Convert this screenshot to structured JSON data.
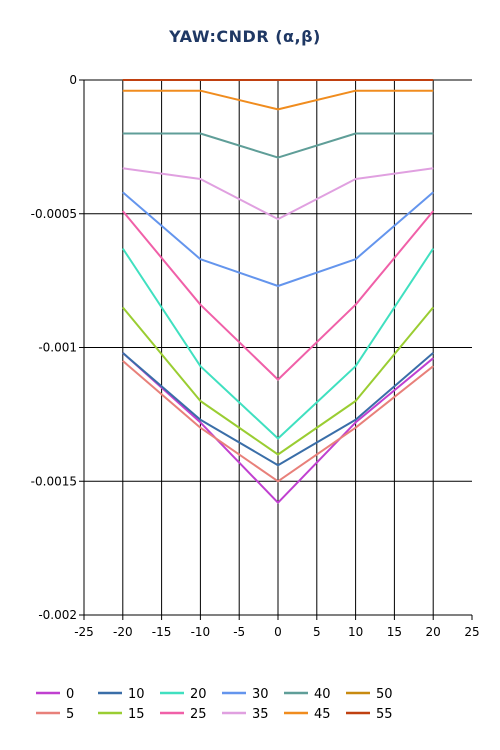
{
  "chart_data": {
    "type": "line",
    "title": "YAW:CNDR (α,β)",
    "xlabel": "",
    "ylabel": "",
    "xlim": [
      -25,
      25
    ],
    "ylim": [
      -0.002,
      0
    ],
    "x_ticks": [
      -25,
      -20,
      -15,
      -10,
      -5,
      0,
      5,
      10,
      15,
      20,
      25
    ],
    "y_ticks": [
      0,
      -0.0005,
      -0.001,
      -0.0015,
      -0.002
    ],
    "x_tick_labels": [
      "-25",
      "-20",
      "-15",
      "-10",
      "-5",
      "0",
      "5",
      "10",
      "15",
      "20",
      "25"
    ],
    "y_tick_labels": [
      "0",
      "-0.0005",
      "-0.001",
      "-0.0015",
      "-0.002"
    ],
    "grid": true,
    "legend_position": "bottom",
    "x": [
      -20,
      -10,
      0,
      10,
      20
    ],
    "series": [
      {
        "name": "0",
        "color": "#c040d0",
        "values": [
          -0.00102,
          -0.00128,
          -0.00158,
          -0.00128,
          -0.00104
        ]
      },
      {
        "name": "5",
        "color": "#e8807a",
        "values": [
          -0.00105,
          -0.0013,
          -0.0015,
          -0.0013,
          -0.00107
        ]
      },
      {
        "name": "10",
        "color": "#3a6ea8",
        "values": [
          -0.00102,
          -0.00127,
          -0.00144,
          -0.00127,
          -0.00102
        ]
      },
      {
        "name": "15",
        "color": "#9acd32",
        "values": [
          -0.00085,
          -0.0012,
          -0.0014,
          -0.0012,
          -0.00085
        ]
      },
      {
        "name": "20",
        "color": "#40e0c0",
        "values": [
          -0.00063,
          -0.00107,
          -0.00134,
          -0.00107,
          -0.00063
        ]
      },
      {
        "name": "25",
        "color": "#f060a8",
        "values": [
          -0.00049,
          -0.00084,
          -0.00112,
          -0.00084,
          -0.00049
        ]
      },
      {
        "name": "30",
        "color": "#6495ed",
        "values": [
          -0.00042,
          -0.00067,
          -0.00077,
          -0.00067,
          -0.00042
        ]
      },
      {
        "name": "35",
        "color": "#e0a0e0",
        "values": [
          -0.00033,
          -0.00037,
          -0.00052,
          -0.00037,
          -0.00033
        ]
      },
      {
        "name": "40",
        "color": "#5f9e98",
        "values": [
          -0.0002,
          -0.0002,
          -0.00029,
          -0.0002,
          -0.0002
        ]
      },
      {
        "name": "45",
        "color": "#f08c1e",
        "values": [
          -4e-05,
          -4e-05,
          -0.00011,
          -4e-05,
          -4e-05
        ]
      },
      {
        "name": "50",
        "color": "#c88a10",
        "values": [
          -1e-07,
          -1e-07,
          -1e-07,
          -1e-07,
          -1e-07
        ]
      },
      {
        "name": "55",
        "color": "#c04010",
        "values": [
          0,
          0,
          0,
          0,
          0
        ]
      }
    ]
  }
}
